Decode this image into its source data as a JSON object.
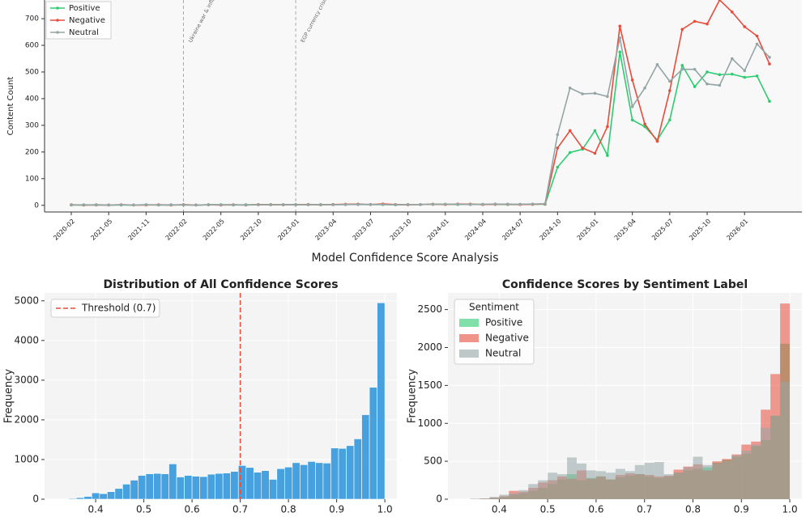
{
  "figure_title": "Model Confidence Score Analysis",
  "chart_data": [
    {
      "type": "line",
      "ylabel": "Content Count",
      "categories": [
        "2020-02",
        null,
        null,
        "2021-05",
        null,
        null,
        "2021-11",
        null,
        null,
        "2022-02",
        null,
        null,
        "2022-05",
        null,
        null,
        "2022-10",
        null,
        null,
        "2023-01",
        null,
        null,
        "2023-04",
        null,
        null,
        "2023-07",
        null,
        null,
        "2023-10",
        null,
        null,
        "2024-01",
        null,
        null,
        "2024-04",
        null,
        null,
        "2024-07",
        null,
        null,
        "2024-10",
        null,
        null,
        "2025-01",
        null,
        null,
        "2025-04",
        null,
        null,
        "2025-07",
        null,
        null,
        "2025-10",
        null,
        null,
        "2026-01",
        null,
        null
      ],
      "series": [
        {
          "name": "Positive",
          "color": "#2ecc71",
          "values": [
            1,
            1,
            2,
            1,
            1,
            1,
            2,
            1,
            1,
            2,
            1,
            2,
            2,
            1,
            2,
            2,
            3,
            2,
            3,
            3,
            2,
            3,
            3,
            4,
            3,
            3,
            2,
            3,
            3,
            4,
            4,
            3,
            4,
            3,
            4,
            3,
            3,
            4,
            4,
            143,
            198,
            210,
            280,
            187,
            575,
            320,
            295,
            245,
            320,
            525,
            445,
            500,
            490,
            492,
            480,
            485,
            390
          ]
        },
        {
          "name": "Negative",
          "color": "#e74c3c",
          "values": [
            2,
            1,
            1,
            1,
            2,
            1,
            1,
            2,
            1,
            2,
            1,
            2,
            1,
            2,
            1,
            3,
            2,
            2,
            2,
            3,
            2,
            3,
            4,
            4,
            3,
            5,
            3,
            2,
            3,
            4,
            3,
            5,
            4,
            3,
            4,
            4,
            3,
            4,
            5,
            215,
            280,
            215,
            195,
            295,
            672,
            470,
            305,
            240,
            430,
            660,
            690,
            680,
            770,
            725,
            670,
            635,
            530
          ]
        },
        {
          "name": "Neutral",
          "color": "#95a5a6",
          "values": [
            1,
            2,
            1,
            1,
            2,
            1,
            2,
            1,
            2,
            1,
            1,
            2,
            2,
            2,
            1,
            2,
            2,
            3,
            2,
            2,
            3,
            2,
            3,
            3,
            3,
            3,
            2,
            3,
            3,
            4,
            4,
            4,
            3,
            4,
            5,
            4,
            4,
            5,
            6,
            265,
            440,
            418,
            420,
            408,
            628,
            370,
            440,
            528,
            465,
            510,
            510,
            455,
            450,
            550,
            505,
            605,
            555
          ]
        }
      ],
      "annotations": [
        {
          "text": "Ukraine war & inflation",
          "x": "2022-02"
        },
        {
          "text": "EGP currency crisis",
          "x": "2023-01"
        }
      ],
      "ylim": [
        -25,
        770
      ],
      "yticks": [
        0,
        100,
        200,
        300,
        400,
        500,
        600,
        700
      ],
      "legend": "upper-left"
    },
    {
      "type": "histogram",
      "title": "Distribution of All Confidence Scores",
      "ylabel": "Frequency",
      "bins": [
        0.328,
        0.344,
        0.36,
        0.376,
        0.392,
        0.408,
        0.424,
        0.44,
        0.456,
        0.472,
        0.488,
        0.504,
        0.52,
        0.536,
        0.552,
        0.568,
        0.584,
        0.6,
        0.616,
        0.632,
        0.648,
        0.664,
        0.68,
        0.696,
        0.712,
        0.728,
        0.744,
        0.76,
        0.776,
        0.792,
        0.808,
        0.824,
        0.84,
        0.856,
        0.872,
        0.888,
        0.904,
        0.92,
        0.936,
        0.952,
        0.968,
        0.984,
        1.0
      ],
      "series": [
        {
          "name": null,
          "color": "#3498db",
          "values": [
            5,
            20,
            40,
            70,
            160,
            140,
            190,
            270,
            380,
            480,
            600,
            640,
            650,
            640,
            890,
            560,
            600,
            580,
            570,
            630,
            650,
            660,
            700,
            850,
            800,
            680,
            720,
            500,
            770,
            810,
            920,
            870,
            950,
            920,
            910,
            1290,
            1280,
            1350,
            1520,
            2130,
            2820,
            4950
          ]
        }
      ],
      "threshold": {
        "value": 0.7,
        "label": "Threshold (0.7)",
        "color": "#e74c3c"
      },
      "xlim": [
        0.294,
        1.025
      ],
      "xticks": [
        0.4,
        0.5,
        0.6,
        0.7,
        0.8,
        0.9,
        {
          "value": 1,
          "label": "1.0"
        }
      ],
      "ylim": [
        0,
        5200
      ],
      "yticks": [
        0,
        1000,
        2000,
        3000,
        4000,
        5000
      ],
      "legend": "upper-left"
    },
    {
      "type": "histogram",
      "title": "Confidence Scores by Sentiment Label",
      "ylabel": "Frequency",
      "legend_title": "Sentiment",
      "bins": [
        0.34,
        0.36,
        0.38,
        0.4,
        0.42,
        0.44,
        0.46,
        0.48,
        0.5,
        0.52,
        0.54,
        0.56,
        0.58,
        0.6,
        0.62,
        0.64,
        0.66,
        0.68,
        0.7,
        0.72,
        0.74,
        0.76,
        0.78,
        0.8,
        0.82,
        0.84,
        0.86,
        0.88,
        0.9,
        0.92,
        0.94,
        0.96,
        0.98,
        1.0
      ],
      "series": [
        {
          "name": "Positive",
          "color": "#2ecc71",
          "values": [
            2,
            5,
            15,
            30,
            60,
            80,
            110,
            150,
            200,
            260,
            330,
            250,
            280,
            300,
            260,
            290,
            310,
            330,
            300,
            280,
            300,
            350,
            380,
            400,
            420,
            480,
            520,
            560,
            600,
            700,
            780,
            1100,
            2050
          ]
        },
        {
          "name": "Negative",
          "color": "#e74c3c",
          "values": [
            3,
            8,
            20,
            40,
            110,
            100,
            150,
            220,
            250,
            300,
            270,
            380,
            270,
            300,
            260,
            320,
            340,
            330,
            320,
            300,
            310,
            390,
            430,
            460,
            380,
            500,
            530,
            590,
            720,
            760,
            1180,
            1650,
            2580
          ]
        },
        {
          "name": "Neutral",
          "color": "#95a5a6",
          "values": [
            5,
            10,
            30,
            60,
            80,
            120,
            200,
            250,
            350,
            330,
            550,
            470,
            380,
            370,
            350,
            400,
            370,
            450,
            480,
            490,
            330,
            350,
            420,
            560,
            450,
            470,
            500,
            580,
            640,
            720,
            940,
            1100,
            1550
          ]
        }
      ],
      "xlim": [
        0.294,
        1.025
      ],
      "xticks": [
        0.4,
        0.5,
        0.6,
        0.7,
        0.8,
        0.9,
        {
          "value": 1,
          "label": "1.0"
        }
      ],
      "ylim": [
        0,
        2720
      ],
      "yticks": [
        0,
        500,
        1000,
        1500,
        2000,
        2500
      ],
      "legend": "upper-left"
    }
  ]
}
